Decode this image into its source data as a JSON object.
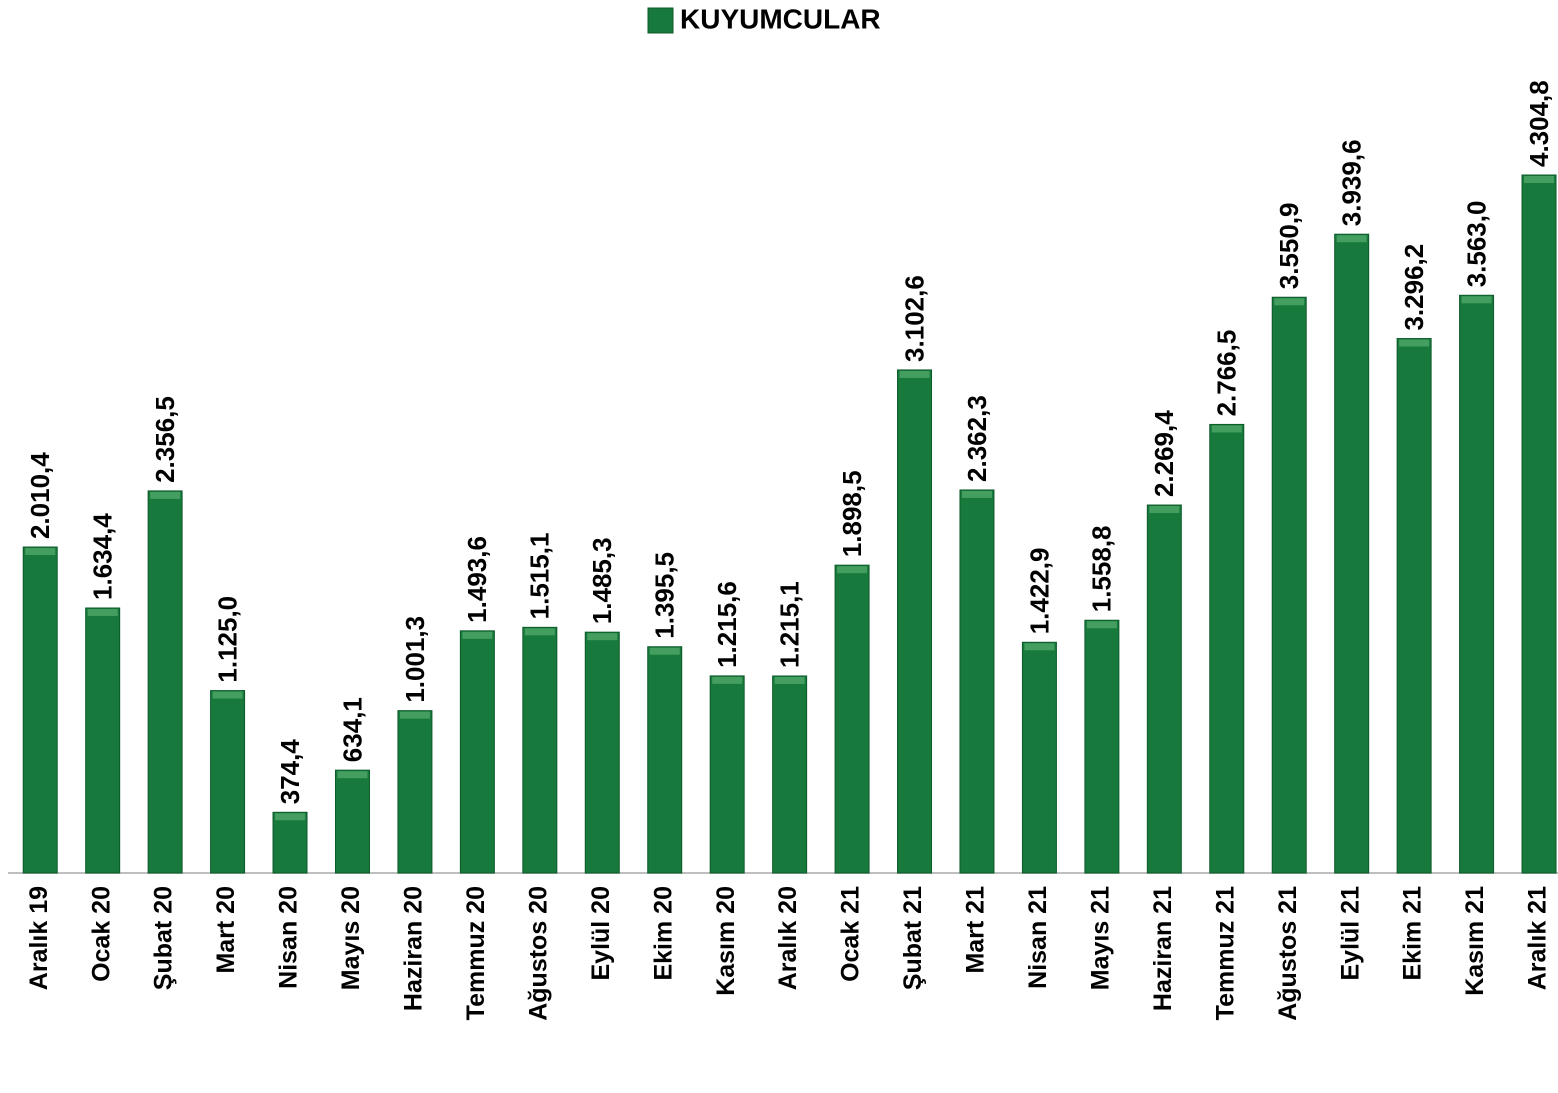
{
  "chart_data": {
    "type": "bar",
    "legend": "KUYUMCULAR",
    "color": "#177a3c",
    "categories": [
      "Aralık 19",
      "Ocak 20",
      "Şubat 20",
      "Mart 20",
      "Nisan 20",
      "Mayıs 20",
      "Haziran 20",
      "Temmuz 20",
      "Ağustos 20",
      "Eylül 20",
      "Ekim 20",
      "Kasım 20",
      "Aralık 20",
      "Ocak 21",
      "Şubat 21",
      "Mart 21",
      "Nisan 21",
      "Mayıs 21",
      "Haziran 21",
      "Temmuz 21",
      "Ağustos 21",
      "Eylül 21",
      "Ekim 21",
      "Kasım 21",
      "Aralık 21"
    ],
    "values": [
      2010.4,
      1634.4,
      2356.5,
      1125.0,
      374.4,
      634.1,
      1001.3,
      1493.6,
      1515.1,
      1485.3,
      1395.5,
      1215.6,
      1215.1,
      1898.5,
      3102.6,
      2362.3,
      1422.9,
      1558.8,
      2269.4,
      2766.5,
      3550.9,
      3939.6,
      3296.2,
      3563.0,
      4304.8
    ],
    "value_labels": [
      "2.010,4",
      "1.634,4",
      "2.356,5",
      "1.125,0",
      "374,4",
      "634,1",
      "1.001,3",
      "1.493,6",
      "1.515,1",
      "1.485,3",
      "1.395,5",
      "1.215,6",
      "1.215,1",
      "1.898,5",
      "3.102,6",
      "2.362,3",
      "1.422,9",
      "1.558,8",
      "2.269,4",
      "2.766,5",
      "3.550,9",
      "3.939,6",
      "3.296,2",
      "3.563,0",
      "4.304,8"
    ]
  }
}
